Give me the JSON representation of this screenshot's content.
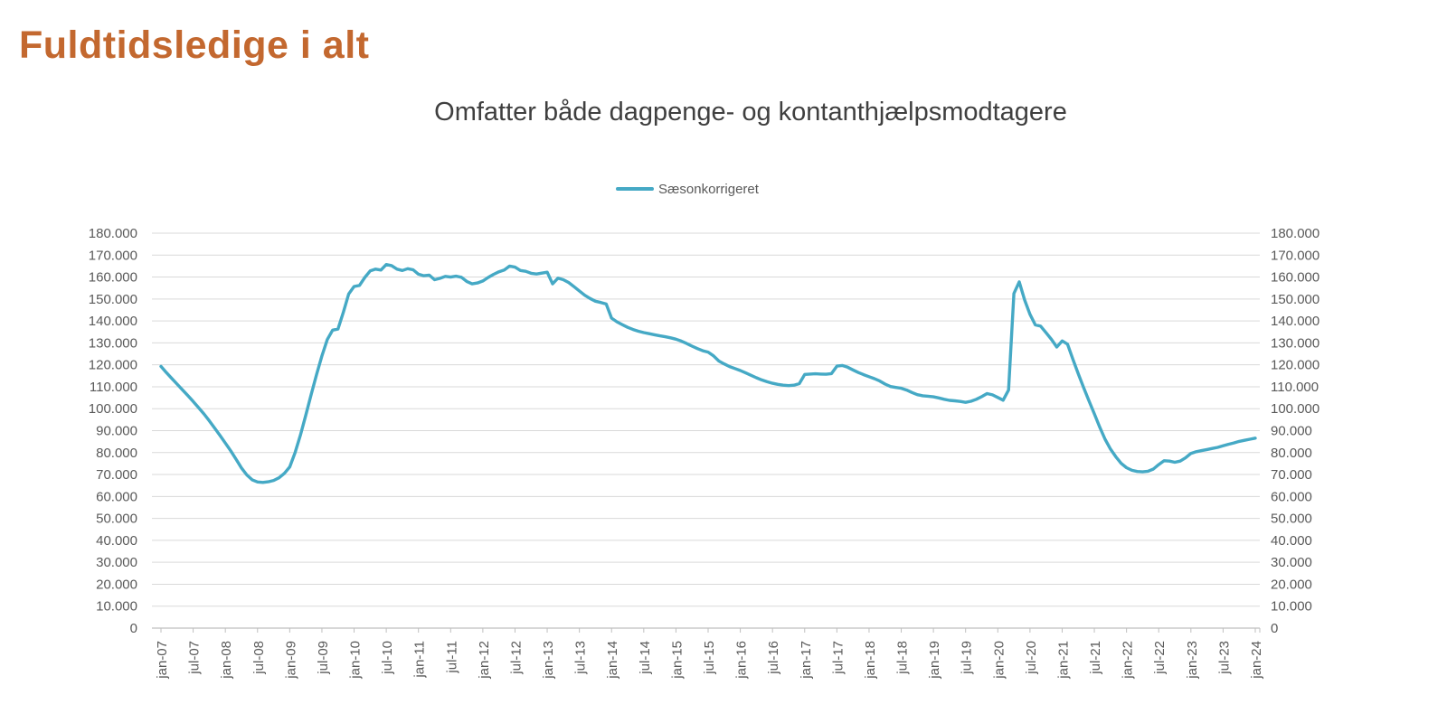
{
  "page": {
    "title": "Fuldtidsledige i alt"
  },
  "chart": {
    "legend_position": "top-center"
  },
  "colors": {
    "page_title": "#C3682F",
    "chart_title": "#3F3F3F",
    "series_line": "#45A9C5",
    "axis_text": "#595959",
    "gridline": "#D9D9D9",
    "axis_line": "#BFBFBF"
  },
  "chart_data": {
    "type": "line",
    "title": "Omfatter både dagpenge- og kontanthjælpsmodtagere",
    "xlabel": "",
    "ylabel": "",
    "ylim": [
      0,
      180000
    ],
    "y_tick_interval": 10000,
    "grid": "horizontal",
    "legend_position": "top-center",
    "y_tick_labels": [
      "0",
      "10.000",
      "20.000",
      "30.000",
      "40.000",
      "50.000",
      "60.000",
      "70.000",
      "80.000",
      "90.000",
      "100.000",
      "110.000",
      "120.000",
      "130.000",
      "140.000",
      "150.000",
      "160.000",
      "170.000",
      "180.000"
    ],
    "x_tick_labels": [
      "jan-07",
      "jul-07",
      "jan-08",
      "jul-08",
      "jan-09",
      "jul-09",
      "jan-10",
      "jul-10",
      "jan-11",
      "jul-11",
      "jan-12",
      "jul-12",
      "jan-13",
      "jul-13",
      "jan-14",
      "jul-14",
      "jan-15",
      "jul-15",
      "jan-16",
      "jul-16",
      "jan-17",
      "jul-17",
      "jan-18",
      "jul-18",
      "jan-19",
      "jul-19",
      "jan-20",
      "jul-20",
      "jan-21",
      "jul-21",
      "jan-22",
      "jul-22",
      "jan-23",
      "jul-23",
      "jan-24"
    ],
    "x_frequency": "monthly",
    "x_range": [
      "jan-07",
      "jan-24"
    ],
    "series": [
      {
        "name": "Sæsonkorrigeret",
        "color": "#45A9C5",
        "values": [
          119300,
          116500,
          113800,
          111200,
          108600,
          106000,
          103300,
          100500,
          97600,
          94500,
          91200,
          87800,
          84300,
          80800,
          77000,
          73000,
          69800,
          67600,
          66600,
          66400,
          66700,
          67300,
          68500,
          70500,
          73500,
          80000,
          88000,
          97000,
          106500,
          115500,
          124000,
          131500,
          135800,
          136300,
          144000,
          152300,
          155700,
          156200,
          159800,
          162800,
          163600,
          163200,
          165700,
          165200,
          163600,
          163000,
          163800,
          163300,
          161300,
          160600,
          160900,
          158800,
          159400,
          160300,
          160000,
          160400,
          159900,
          158000,
          156900,
          157300,
          158200,
          159800,
          161200,
          162400,
          163200,
          165000,
          164500,
          163000,
          162600,
          161700,
          161400,
          161800,
          162200,
          156900,
          159500,
          158800,
          157500,
          155600,
          153700,
          151700,
          150200,
          149000,
          148400,
          147700,
          141300,
          139600,
          138300,
          137100,
          136100,
          135300,
          134700,
          134200,
          133700,
          133200,
          132800,
          132300,
          131700,
          130800,
          129700,
          128500,
          127400,
          126400,
          125800,
          124100,
          121700,
          120400,
          119200,
          118300,
          117400,
          116300,
          115200,
          114100,
          113100,
          112300,
          111600,
          111100,
          110700,
          110500,
          110700,
          111400,
          115600,
          115800,
          115900,
          115800,
          115700,
          116000,
          119400,
          119700,
          118900,
          117700,
          116500,
          115500,
          114600,
          113700,
          112600,
          111200,
          110100,
          109700,
          109300,
          108500,
          107400,
          106400,
          105900,
          105700,
          105400,
          104900,
          104300,
          103800,
          103600,
          103300,
          102900,
          103400,
          104300,
          105500,
          106900,
          106300,
          105100,
          103900,
          108500,
          152500,
          157800,
          149500,
          143000,
          138200,
          137600,
          134600,
          131600,
          128100,
          130900,
          129400,
          122600,
          115900,
          109600,
          103600,
          97600,
          91600,
          86100,
          81600,
          78100,
          75100,
          73100,
          71900,
          71400,
          71200,
          71500,
          72500,
          74500,
          76300,
          76100,
          75600,
          76100,
          77600,
          79600,
          80400,
          80900,
          81400,
          81900,
          82400,
          83100,
          83800,
          84400,
          85100,
          85600,
          86100,
          86600
        ]
      }
    ]
  }
}
